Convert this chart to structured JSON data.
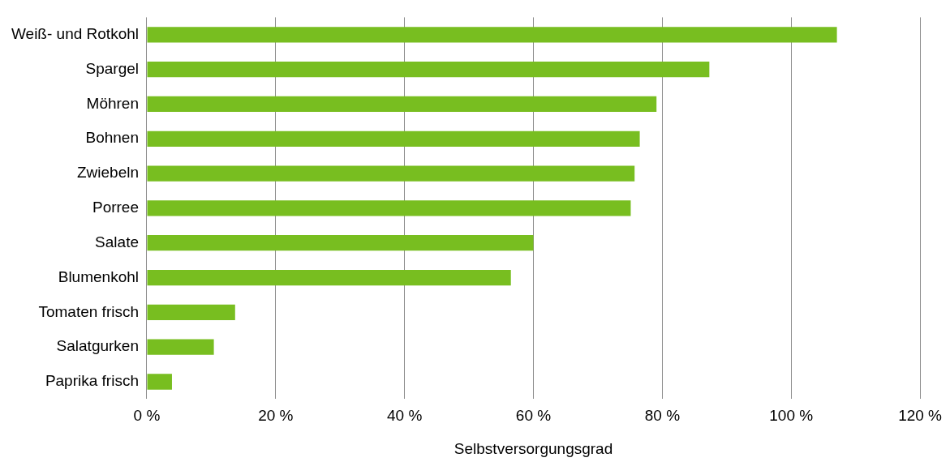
{
  "chart_data": {
    "type": "bar",
    "orientation": "horizontal",
    "categories": [
      "Weiß- und Rotkohl",
      "Spargel",
      "Möhren",
      "Bohnen",
      "Zwiebeln",
      "Porree",
      "Salate",
      "Blumenkohl",
      "Tomaten frisch",
      "Salatgurken",
      "Paprika frisch"
    ],
    "values": [
      107.1,
      87.3,
      79.1,
      76.5,
      75.7,
      75.1,
      60.0,
      56.5,
      13.7,
      10.4,
      3.9
    ],
    "color": "#78be20",
    "xlim": [
      0,
      120
    ],
    "xticks": [
      {
        "value": 0,
        "label": "0 %"
      },
      {
        "value": 20,
        "label": "20 %"
      },
      {
        "value": 40,
        "label": "40 %"
      },
      {
        "value": 60,
        "label": "60 %"
      },
      {
        "value": 80,
        "label": "80 %"
      },
      {
        "value": 100,
        "label": "100 %"
      },
      {
        "value": 120,
        "label": "120 %"
      }
    ],
    "xlabel": "Selbstversorgungsgrad",
    "grid": "x",
    "legend": false
  }
}
